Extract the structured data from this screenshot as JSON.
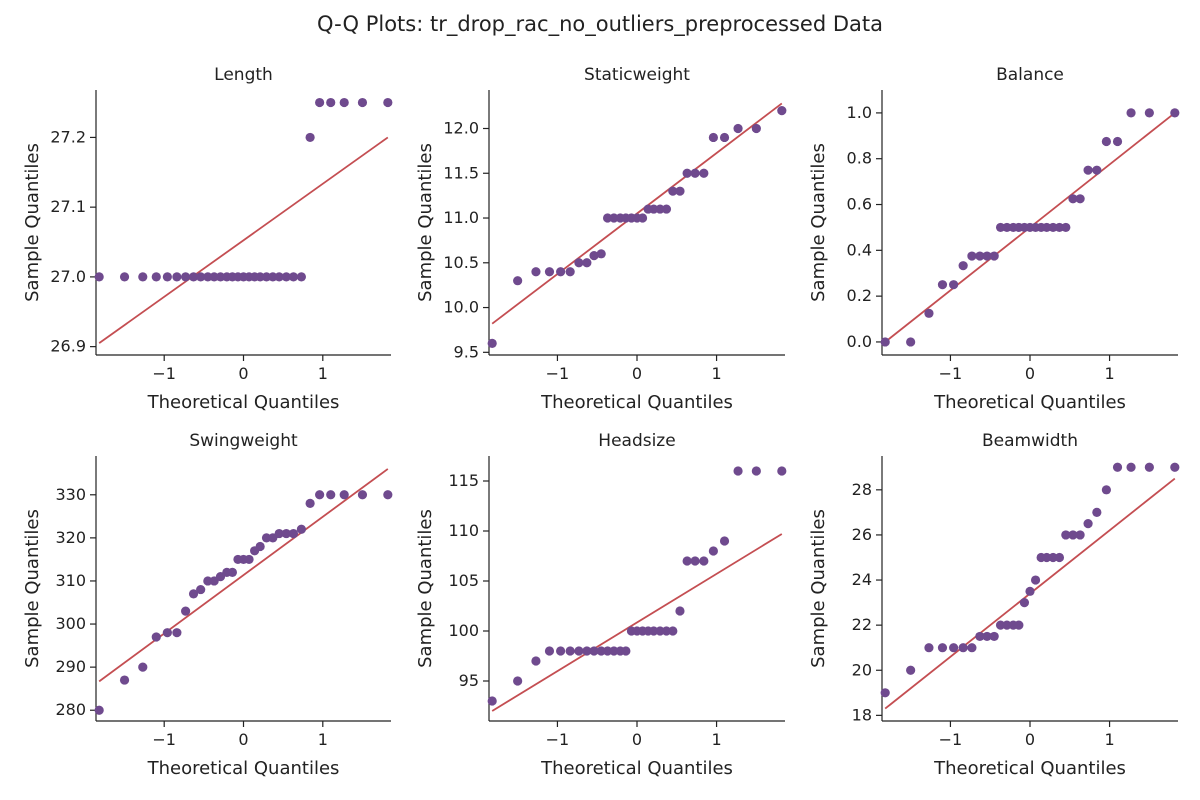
{
  "figure": {
    "title": "Q-Q Plots: tr_drop_rac_no_outliers_preprocessed Data",
    "colors": {
      "point": "#6f4a8e",
      "line": "#c44e52",
      "axis": "#222222"
    }
  },
  "chart_data": [
    {
      "type": "scatter",
      "title": "Length",
      "xlabel": "Theoretical Quantiles",
      "ylabel": "Sample Quantiles",
      "xlim": [
        -1.86,
        1.86
      ],
      "ylim": [
        26.888,
        27.268
      ],
      "xticks": [
        -1,
        0,
        1
      ],
      "yticks": [
        26.9,
        27.0,
        27.1,
        27.2
      ],
      "ytick_labels": [
        "26.9",
        "27.0",
        "27.1",
        "27.2"
      ],
      "x": [
        -1.82,
        -1.5,
        -1.27,
        -1.1,
        -0.96,
        -0.84,
        -0.73,
        -0.63,
        -0.54,
        -0.45,
        -0.37,
        -0.29,
        -0.21,
        -0.14,
        -0.07,
        0.0,
        0.07,
        0.14,
        0.21,
        0.29,
        0.37,
        0.45,
        0.54,
        0.63,
        0.73,
        0.84,
        0.96,
        1.1,
        1.27,
        1.5,
        1.82
      ],
      "y": [
        27.0,
        27.0,
        27.0,
        27.0,
        27.0,
        27.0,
        27.0,
        27.0,
        27.0,
        27.0,
        27.0,
        27.0,
        27.0,
        27.0,
        27.0,
        27.0,
        27.0,
        27.0,
        27.0,
        27.0,
        27.0,
        27.0,
        27.0,
        27.0,
        27.0,
        27.2,
        27.25,
        27.25,
        27.25,
        27.25,
        27.25
      ],
      "fit_line": {
        "x": [
          -1.82,
          1.82
        ],
        "y": [
          26.905,
          27.2
        ]
      }
    },
    {
      "type": "scatter",
      "title": "Staticweight",
      "xlabel": "Theoretical Quantiles",
      "ylabel": "Sample Quantiles",
      "xlim": [
        -1.86,
        1.86
      ],
      "ylim": [
        9.47,
        12.43
      ],
      "xticks": [
        -1,
        0,
        1
      ],
      "yticks": [
        9.5,
        10.0,
        10.5,
        11.0,
        11.5,
        12.0
      ],
      "ytick_labels": [
        "9.5",
        "10.0",
        "10.5",
        "11.0",
        "11.5",
        "12.0"
      ],
      "x": [
        -1.82,
        -1.5,
        -1.27,
        -1.1,
        -0.96,
        -0.84,
        -0.73,
        -0.63,
        -0.54,
        -0.45,
        -0.37,
        -0.29,
        -0.21,
        -0.14,
        -0.07,
        0.0,
        0.07,
        0.14,
        0.21,
        0.29,
        0.37,
        0.45,
        0.54,
        0.63,
        0.73,
        0.84,
        0.96,
        1.1,
        1.27,
        1.5,
        1.82
      ],
      "y": [
        9.6,
        10.3,
        10.4,
        10.4,
        10.4,
        10.4,
        10.5,
        10.5,
        10.58,
        10.6,
        11.0,
        11.0,
        11.0,
        11.0,
        11.0,
        11.0,
        11.0,
        11.1,
        11.1,
        11.1,
        11.1,
        11.3,
        11.3,
        11.5,
        11.5,
        11.5,
        11.9,
        11.9,
        12.0,
        12.0,
        12.2
      ],
      "fit_line": {
        "x": [
          -1.82,
          1.82
        ],
        "y": [
          9.82,
          12.28
        ]
      }
    },
    {
      "type": "scatter",
      "title": "Balance",
      "xlabel": "Theoretical Quantiles",
      "ylabel": "Sample Quantiles",
      "xlim": [
        -1.86,
        1.86
      ],
      "ylim": [
        -0.057,
        1.1
      ],
      "xticks": [
        -1,
        0,
        1
      ],
      "yticks": [
        0.0,
        0.2,
        0.4,
        0.6,
        0.8,
        1.0
      ],
      "ytick_labels": [
        "0.0",
        "0.2",
        "0.4",
        "0.6",
        "0.8",
        "1.0"
      ],
      "x": [
        -1.82,
        -1.5,
        -1.27,
        -1.1,
        -0.96,
        -0.84,
        -0.73,
        -0.63,
        -0.54,
        -0.45,
        -0.37,
        -0.29,
        -0.21,
        -0.14,
        -0.07,
        0.0,
        0.07,
        0.14,
        0.21,
        0.29,
        0.37,
        0.45,
        0.54,
        0.63,
        0.73,
        0.84,
        0.96,
        1.1,
        1.27,
        1.5,
        1.82
      ],
      "y": [
        0.0,
        0.0,
        0.125,
        0.25,
        0.25,
        0.333,
        0.375,
        0.375,
        0.375,
        0.375,
        0.5,
        0.5,
        0.5,
        0.5,
        0.5,
        0.5,
        0.5,
        0.5,
        0.5,
        0.5,
        0.5,
        0.5,
        0.625,
        0.625,
        0.75,
        0.75,
        0.875,
        0.875,
        1.0,
        1.0,
        1.0
      ],
      "fit_line": {
        "x": [
          -1.82,
          1.82
        ],
        "y": [
          0.0,
          1.0
        ]
      }
    },
    {
      "type": "scatter",
      "title": "Swingweight",
      "xlabel": "Theoretical Quantiles",
      "ylabel": "Sample Quantiles",
      "xlim": [
        -1.86,
        1.86
      ],
      "ylim": [
        277.5,
        339.0
      ],
      "xticks": [
        -1,
        0,
        1
      ],
      "yticks": [
        280,
        290,
        300,
        310,
        320,
        330
      ],
      "ytick_labels": [
        "280",
        "290",
        "300",
        "310",
        "320",
        "330"
      ],
      "x": [
        -1.82,
        -1.5,
        -1.27,
        -1.1,
        -0.96,
        -0.84,
        -0.73,
        -0.63,
        -0.54,
        -0.45,
        -0.37,
        -0.29,
        -0.21,
        -0.14,
        -0.07,
        0.0,
        0.07,
        0.14,
        0.21,
        0.29,
        0.37,
        0.45,
        0.54,
        0.63,
        0.73,
        0.84,
        0.96,
        1.1,
        1.27,
        1.5,
        1.82
      ],
      "y": [
        280,
        287,
        290,
        297,
        298,
        298,
        303,
        307,
        308,
        310,
        310,
        311,
        312,
        312,
        315,
        315,
        315,
        317,
        318,
        320,
        320,
        321,
        321,
        321,
        322,
        328,
        330,
        330,
        330,
        330,
        330
      ],
      "fit_line": {
        "x": [
          -1.82,
          1.82
        ],
        "y": [
          286.7,
          336.0
        ]
      }
    },
    {
      "type": "scatter",
      "title": "Headsize",
      "xlabel": "Theoretical Quantiles",
      "ylabel": "Sample Quantiles",
      "xlim": [
        -1.86,
        1.86
      ],
      "ylim": [
        91.0,
        117.5
      ],
      "xticks": [
        -1,
        0,
        1
      ],
      "yticks": [
        95,
        100,
        105,
        110,
        115
      ],
      "ytick_labels": [
        "95",
        "100",
        "105",
        "110",
        "115"
      ],
      "x": [
        -1.82,
        -1.5,
        -1.27,
        -1.1,
        -0.96,
        -0.84,
        -0.73,
        -0.63,
        -0.54,
        -0.45,
        -0.37,
        -0.29,
        -0.21,
        -0.14,
        -0.07,
        0.0,
        0.07,
        0.14,
        0.21,
        0.29,
        0.37,
        0.45,
        0.54,
        0.63,
        0.73,
        0.84,
        0.96,
        1.1,
        1.27,
        1.5,
        1.82
      ],
      "y": [
        93,
        95,
        97,
        98,
        98,
        98,
        98,
        98,
        98,
        98,
        98,
        98,
        98,
        98,
        100,
        100,
        100,
        100,
        100,
        100,
        100,
        100,
        102,
        107,
        107,
        107,
        108,
        109,
        116,
        116,
        116
      ],
      "fit_line": {
        "x": [
          -1.82,
          1.82
        ],
        "y": [
          92.0,
          109.7
        ]
      }
    },
    {
      "type": "scatter",
      "title": "Beamwidth",
      "xlabel": "Theoretical Quantiles",
      "ylabel": "Sample Quantiles",
      "xlim": [
        -1.86,
        1.86
      ],
      "ylim": [
        17.75,
        29.5
      ],
      "xticks": [
        -1,
        0,
        1
      ],
      "yticks": [
        18,
        20,
        22,
        24,
        26,
        28
      ],
      "ytick_labels": [
        "18",
        "20",
        "22",
        "24",
        "26",
        "28"
      ],
      "x": [
        -1.82,
        -1.5,
        -1.27,
        -1.1,
        -0.96,
        -0.84,
        -0.73,
        -0.63,
        -0.54,
        -0.45,
        -0.37,
        -0.29,
        -0.21,
        -0.14,
        -0.07,
        0.0,
        0.07,
        0.14,
        0.21,
        0.29,
        0.37,
        0.45,
        0.54,
        0.63,
        0.73,
        0.84,
        0.96,
        1.1,
        1.27,
        1.5,
        1.82
      ],
      "y": [
        19,
        20,
        21,
        21,
        21,
        21,
        21,
        21.5,
        21.5,
        21.5,
        22,
        22,
        22,
        22,
        23,
        23.5,
        24,
        25,
        25,
        25,
        25,
        26,
        26,
        26,
        26.5,
        27,
        28,
        29,
        29,
        29,
        29
      ],
      "fit_line": {
        "x": [
          -1.82,
          1.82
        ],
        "y": [
          18.3,
          28.5
        ]
      }
    }
  ]
}
